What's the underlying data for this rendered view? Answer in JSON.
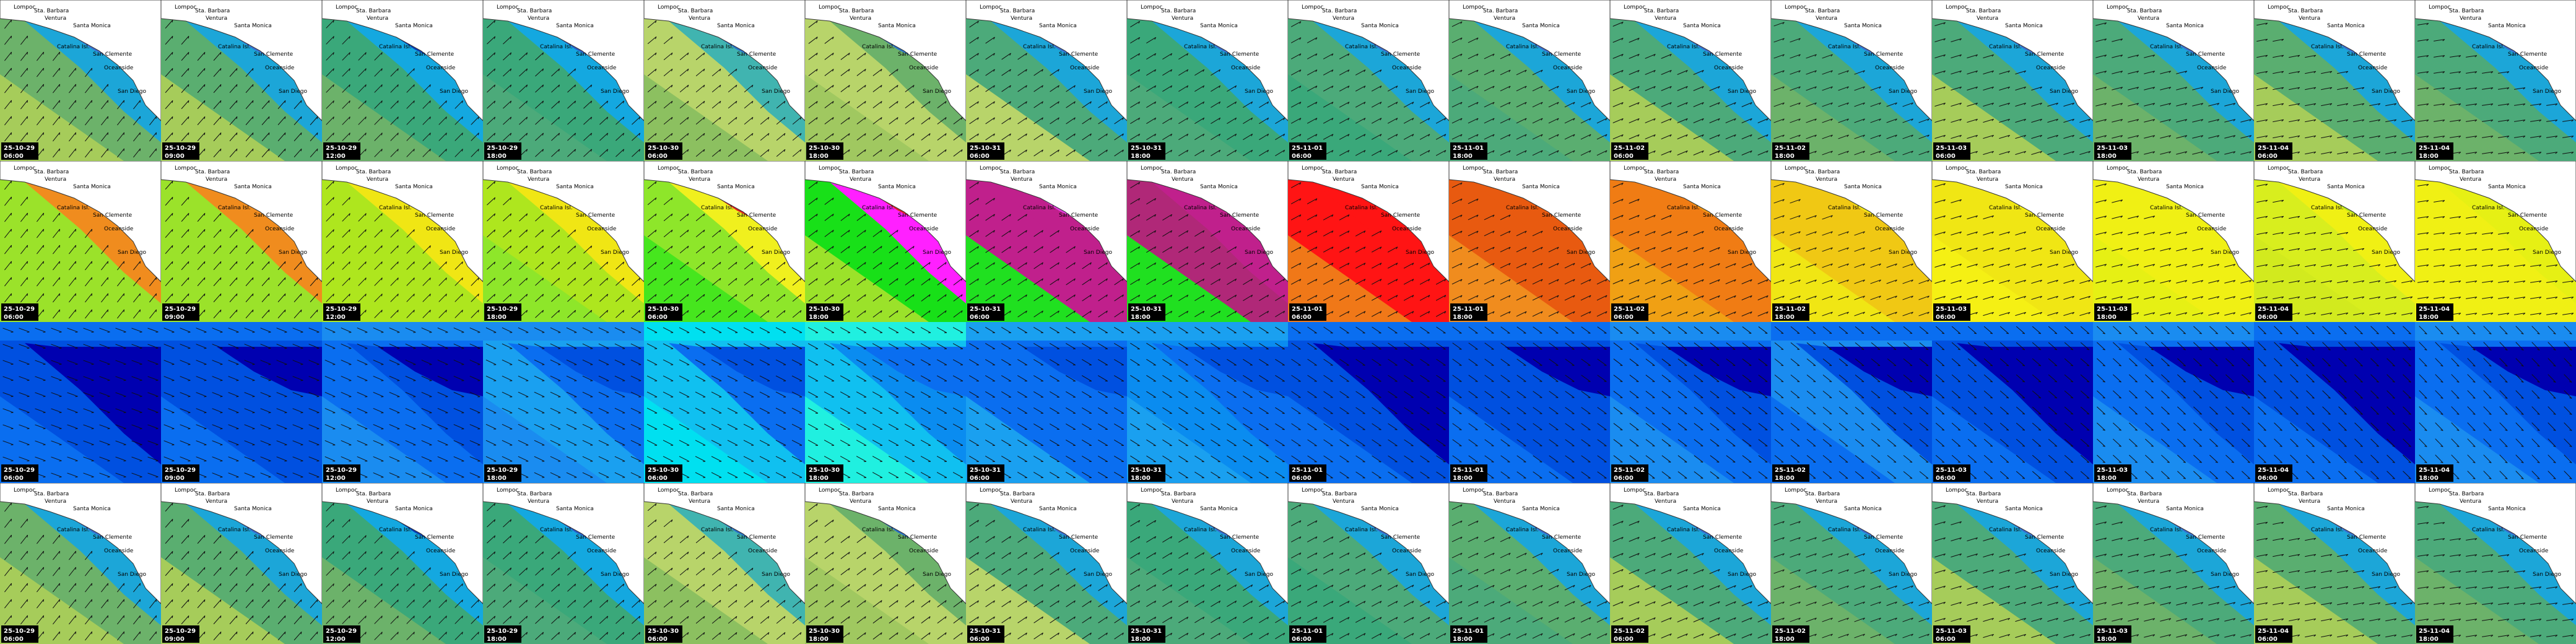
{
  "frames": [
    {
      "date": "25-10-29",
      "time": "06:00"
    },
    {
      "date": "25-10-29",
      "time": "09:00"
    },
    {
      "date": "25-10-29",
      "time": "12:00"
    },
    {
      "date": "25-10-29",
      "time": "18:00"
    },
    {
      "date": "25-10-30",
      "time": "06:00"
    },
    {
      "date": "25-10-30",
      "time": "18:00"
    },
    {
      "date": "25-10-31",
      "time": "06:00"
    },
    {
      "date": "25-10-31",
      "time": "18:00"
    },
    {
      "date": "25-11-01",
      "time": "06:00"
    },
    {
      "date": "25-11-01",
      "time": "18:00"
    },
    {
      "date": "25-11-02",
      "time": "06:00"
    },
    {
      "date": "25-11-02",
      "time": "18:00"
    },
    {
      "date": "25-11-03",
      "time": "06:00"
    },
    {
      "date": "25-11-03",
      "time": "18:00"
    },
    {
      "date": "25-11-04",
      "time": "06:00"
    },
    {
      "date": "25-11-04",
      "time": "18:00"
    }
  ],
  "places": [
    {
      "label": "Lompoc"
    },
    {
      "label": "Sta. Barbara"
    },
    {
      "label": "Ventura"
    },
    {
      "label": "Santa Monica"
    },
    {
      "label": "Catalina Isl."
    },
    {
      "label": "San Clemente"
    },
    {
      "label": "Oceanside"
    },
    {
      "label": "San Diego"
    }
  ]
}
